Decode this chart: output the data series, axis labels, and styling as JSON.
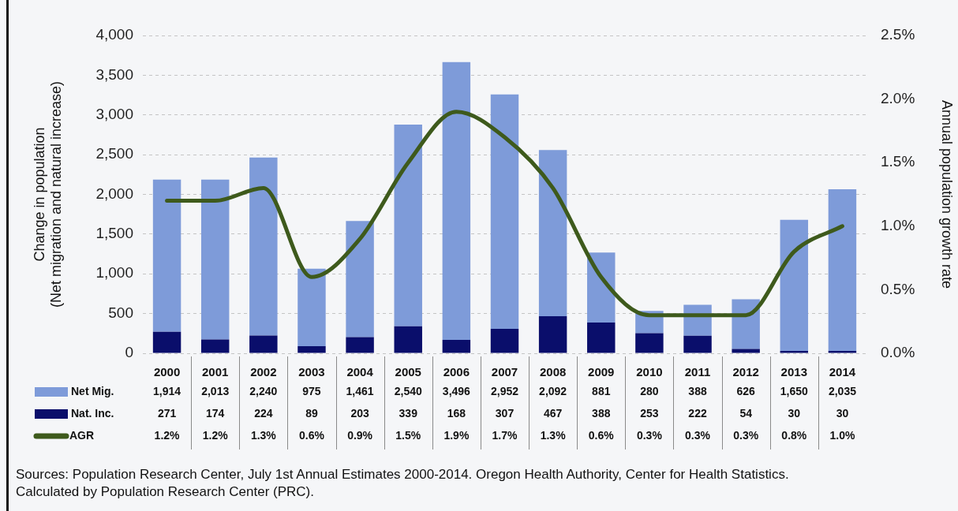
{
  "chart_data": {
    "type": "bar",
    "stacked": true,
    "categories": [
      "2000",
      "2001",
      "2002",
      "2003",
      "2004",
      "2005",
      "2006",
      "2007",
      "2008",
      "2009",
      "2010",
      "2011",
      "2012",
      "2013",
      "2014"
    ],
    "series": [
      {
        "name": "Nat. Inc.",
        "color": "#0a0e6b",
        "values": [
          271,
          174,
          224,
          89,
          203,
          339,
          168,
          307,
          467,
          388,
          253,
          222,
          54,
          30,
          30
        ],
        "value_labels": [
          "271",
          "174",
          "224",
          "89",
          "203",
          "339",
          "168",
          "307",
          "467",
          "388",
          "253",
          "222",
          "54",
          "30",
          "30"
        ]
      },
      {
        "name": "Net Mig.",
        "color": "#7e9bd9",
        "values": [
          1914,
          2013,
          2240,
          975,
          1461,
          2540,
          3496,
          2952,
          2092,
          881,
          280,
          388,
          626,
          1650,
          2035
        ],
        "value_labels": [
          "1,914",
          "2,013",
          "2,240",
          "975",
          "1,461",
          "2,540",
          "3,496",
          "2,952",
          "2,092",
          "881",
          "280",
          "388",
          "626",
          "1,650",
          "2,035"
        ]
      },
      {
        "name": "AGR",
        "type": "line",
        "axis": "y2",
        "color": "#3e5a1c",
        "values": [
          1.2,
          1.2,
          1.3,
          0.6,
          0.9,
          1.5,
          1.9,
          1.7,
          1.3,
          0.6,
          0.3,
          0.3,
          0.3,
          0.8,
          1.0
        ],
        "value_labels": [
          "1.2%",
          "1.2%",
          "1.3%",
          "0.6%",
          "0.9%",
          "1.5%",
          "1.9%",
          "1.7%",
          "1.3%",
          "0.6%",
          "0.3%",
          "0.3%",
          "0.3%",
          "0.8%",
          "1.0%"
        ]
      }
    ],
    "ylabel": "Change in population\n(Net migration and natural increase)",
    "y2label": "Annual population growth rate",
    "ylim": [
      0,
      4000
    ],
    "yticks": [
      0,
      500,
      {
        "value": 1000,
        "label": "1,000"
      },
      {
        "value": 1500,
        "label": "1,500"
      },
      {
        "value": 2000,
        "label": "2,000"
      },
      {
        "value": 2500,
        "label": "2,500"
      },
      {
        "value": 3000,
        "label": "3,000"
      },
      {
        "value": 3500,
        "label": "3,500"
      },
      {
        "value": 4000,
        "label": "4,000"
      }
    ],
    "y2lim": [
      0,
      2.5
    ],
    "y2ticks": [
      {
        "value": 0,
        "label": "0.0%"
      },
      {
        "value": 0.5,
        "label": "0.5%"
      },
      {
        "value": 1,
        "label": "1.0%"
      },
      {
        "value": 1.5,
        "label": "1.5%"
      },
      {
        "value": 2,
        "label": "2.0%"
      },
      {
        "value": 2.5,
        "label": "2.5%"
      }
    ],
    "grid": "y",
    "legend": "bottom left",
    "marker": "none",
    "annotations": [
      "Sources: Population Research Center, July 1st Annual Estimates 2000-2014. Oregon Health Authority, Center for Health Statistics. Calculated by Population Research Center (PRC)."
    ]
  }
}
